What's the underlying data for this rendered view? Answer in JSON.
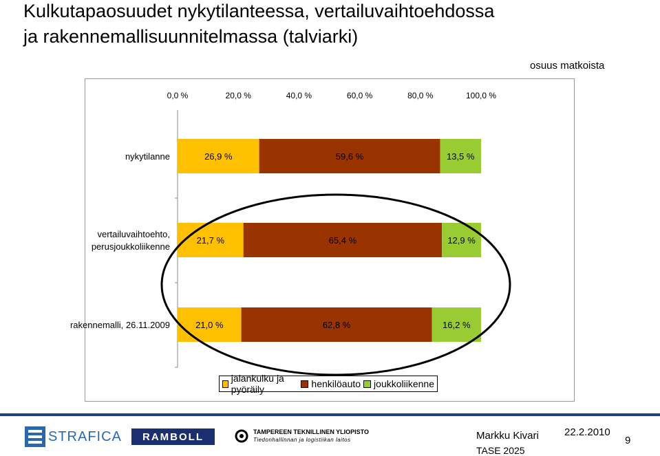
{
  "slide": {
    "title_line1": "Kulkutapaosuudet nykytilanteessa, vertailuvaihtoehdossa",
    "title_line2": "ja rakennemallisuunnitelmassa (talviarki)",
    "unit_label": "osuus matkoista"
  },
  "chart_data": {
    "type": "bar",
    "orientation": "horizontal",
    "stacked": true,
    "categories": [
      "nykytilanne",
      "vertailuvaihtoehto, perusjoukkoliikenne",
      "rakennemalli, 26.11.2009"
    ],
    "category_lines": [
      [
        "nykytilanne"
      ],
      [
        "vertailuvaihtoehto,",
        "perusjoukkoliikenne"
      ],
      [
        "rakennemalli, 26.11.2009"
      ]
    ],
    "series": [
      {
        "name": "jalankulku ja pyöräily",
        "color": "#ffc000",
        "values": [
          26.9,
          21.7,
          21.0
        ],
        "labels": [
          "26,9 %",
          "21,7 %",
          "21,0 %"
        ]
      },
      {
        "name": "henkilöauto",
        "color": "#993300",
        "values": [
          59.6,
          65.4,
          62.8
        ],
        "labels": [
          "59,6 %",
          "65,4 %",
          "62,8 %"
        ]
      },
      {
        "name": "joukkoliikenne",
        "color": "#99cc33",
        "values": [
          13.5,
          12.9,
          16.2
        ],
        "labels": [
          "13,5 %",
          "12,9 %",
          "16,2 %"
        ]
      }
    ],
    "xlim": [
      0,
      100
    ],
    "x_ticks": [
      0,
      20,
      40,
      60,
      80,
      100
    ],
    "x_tick_labels": [
      "0,0 %",
      "20,0 %",
      "40,0 %",
      "60,0 %",
      "80,0 %",
      "100,0 %"
    ],
    "x_axis_position": "top",
    "legend_position": "bottom",
    "grid": false,
    "annotation": "ellipse highlighting vertailuvaihtoehto and rakennemalli bars"
  },
  "footer": {
    "logo_strafica": "STRAFICA",
    "logo_ramboll": "RAMBOLL",
    "logo_tut_line1": "TAMPEREEN TEKNILLINEN YLIOPISTO",
    "logo_tut_line2": "Tiedonhallinnan ja logistiikan laitos",
    "author": "Markku Kivari",
    "project": "TASE 2025",
    "date": "22.2.2010",
    "page_number": "9"
  }
}
